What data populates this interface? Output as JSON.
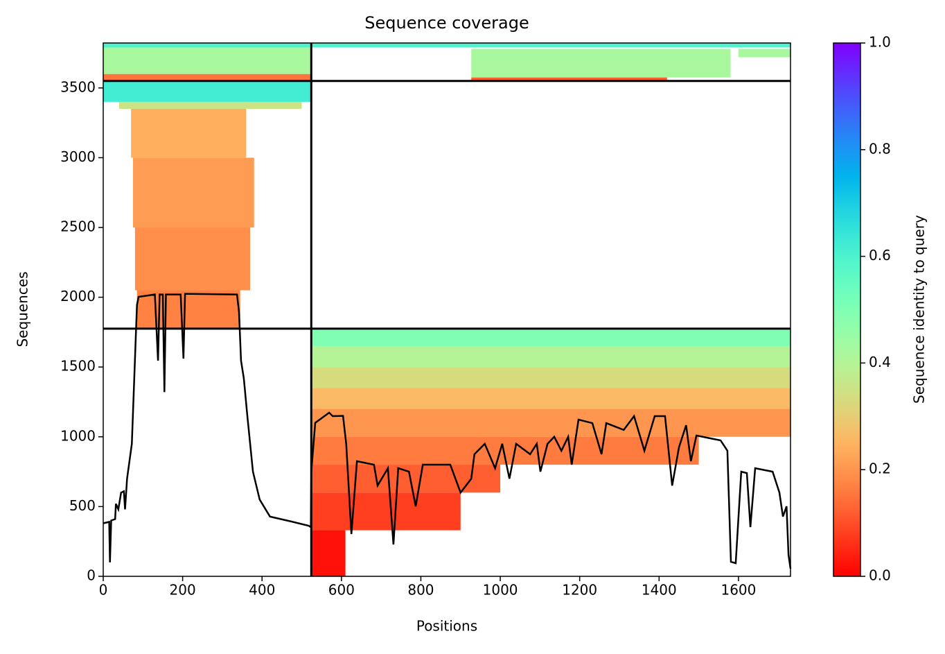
{
  "chart_data": {
    "type": "coverage",
    "title": "Sequence coverage",
    "xlabel": "Positions",
    "ylabel": "Sequences",
    "xlim": [
      0,
      1731
    ],
    "ylim": [
      0,
      3822
    ],
    "xticks": [
      0,
      200,
      400,
      600,
      800,
      1000,
      1200,
      1400,
      1600
    ],
    "yticks": [
      0,
      500,
      1000,
      1500,
      2000,
      2500,
      3000,
      3500
    ],
    "colorbar": {
      "label": "Sequence identity to query",
      "cmap": "rainbow_r",
      "lim": [
        0,
        1
      ],
      "ticks": [
        {
          "value": 0,
          "label": "0.0"
        },
        0.2,
        0.4,
        0.6,
        0.8,
        {
          "value": 1,
          "label": "1.0"
        }
      ]
    },
    "blocks": [
      {
        "x": [
          0,
          523
        ],
        "y": [
          3550,
          3600
        ],
        "identity": 0.15
      },
      {
        "x": [
          0,
          523
        ],
        "y": [
          3600,
          3790
        ],
        "identity": 0.42
      },
      {
        "x": [
          0,
          523
        ],
        "y": [
          3790,
          3822
        ],
        "identity": 0.6
      },
      {
        "x": [
          927,
          1580
        ],
        "y": [
          3575,
          3780
        ],
        "identity": 0.42
      },
      {
        "x": [
          927,
          1420
        ],
        "y": [
          3555,
          3575
        ],
        "identity": 0.12
      },
      {
        "x": [
          1600,
          1731
        ],
        "y": [
          3720,
          3780
        ],
        "identity": 0.42
      },
      {
        "x": [
          524,
          1731
        ],
        "y": [
          3790,
          3822
        ],
        "identity": 0.6
      },
      {
        "x": [
          0,
          523
        ],
        "y": [
          3400,
          3550
        ],
        "identity": 0.62
      },
      {
        "x": [
          40,
          500
        ],
        "y": [
          3350,
          3400
        ],
        "identity": 0.35
      },
      {
        "x": [
          70,
          360
        ],
        "y": [
          3000,
          3350
        ],
        "identity": 0.24
      },
      {
        "x": [
          75,
          380
        ],
        "y": [
          2500,
          3000
        ],
        "identity": 0.21
      },
      {
        "x": [
          80,
          370
        ],
        "y": [
          2050,
          2500
        ],
        "identity": 0.19
      },
      {
        "x": [
          85,
          345
        ],
        "y": [
          1775,
          2050
        ],
        "identity": 0.17
      },
      {
        "x": [
          524,
          1731
        ],
        "y": [
          1650,
          1775
        ],
        "identity": 0.5
      },
      {
        "x": [
          524,
          1731
        ],
        "y": [
          1500,
          1650
        ],
        "identity": 0.4
      },
      {
        "x": [
          524,
          1731
        ],
        "y": [
          1350,
          1500
        ],
        "identity": 0.33
      },
      {
        "x": [
          524,
          1731
        ],
        "y": [
          1200,
          1350
        ],
        "identity": 0.26
      },
      {
        "x": [
          524,
          1731
        ],
        "y": [
          1000,
          1200
        ],
        "identity": 0.2
      },
      {
        "x": [
          524,
          1500
        ],
        "y": [
          800,
          1000
        ],
        "identity": 0.16
      },
      {
        "x": [
          524,
          1000
        ],
        "y": [
          600,
          800
        ],
        "identity": 0.12
      },
      {
        "x": [
          524,
          900
        ],
        "y": [
          330,
          600
        ],
        "identity": 0.08
      },
      {
        "x": [
          524,
          610
        ],
        "y": [
          0,
          330
        ],
        "identity": 0.02
      }
    ],
    "dividers": {
      "x": [
        524
      ],
      "y": [
        1775,
        3550
      ]
    },
    "line": {
      "color": "#000000",
      "x": [
        0,
        15,
        17,
        20,
        30,
        32,
        38,
        45,
        52,
        55,
        60,
        72,
        85,
        89,
        130,
        138,
        142,
        150,
        154,
        158,
        195,
        202,
        206,
        337,
        342,
        347,
        354,
        363,
        377,
        394,
        420,
        473,
        517,
        523,
        524,
        534,
        569,
        578,
        604,
        612,
        625,
        639,
        682,
        691,
        717,
        731,
        743,
        770,
        787,
        805,
        874,
        900,
        927,
        935,
        961,
        987,
        1005,
        1023,
        1040,
        1075,
        1092,
        1101,
        1119,
        1136,
        1154,
        1171,
        1180,
        1197,
        1232,
        1255,
        1267,
        1311,
        1337,
        1363,
        1389,
        1415,
        1433,
        1450,
        1468,
        1480,
        1494,
        1555,
        1572,
        1581,
        1593,
        1607,
        1621,
        1630,
        1642,
        1686,
        1703,
        1712,
        1721,
        1726,
        1731
      ],
      "values": [
        380,
        390,
        100,
        400,
        410,
        520,
        480,
        600,
        610,
        480,
        700,
        950,
        1945,
        2003,
        2020,
        1545,
        2020,
        2020,
        1320,
        2020,
        2020,
        1560,
        2025,
        2020,
        1894,
        1545,
        1420,
        1150,
        750,
        550,
        428,
        393,
        363,
        353,
        750,
        1100,
        1173,
        1148,
        1150,
        950,
        303,
        825,
        800,
        650,
        775,
        228,
        775,
        750,
        502,
        800,
        800,
        600,
        700,
        875,
        950,
        775,
        950,
        700,
        950,
        875,
        950,
        750,
        950,
        1000,
        900,
        1000,
        800,
        1123,
        1098,
        875,
        1098,
        1049,
        1148,
        900,
        1148,
        1148,
        650,
        924,
        1083,
        825,
        1009,
        974,
        900,
        104,
        94,
        750,
        740,
        353,
        775,
        750,
        600,
        428,
        502,
        154,
        55
      ]
    }
  }
}
